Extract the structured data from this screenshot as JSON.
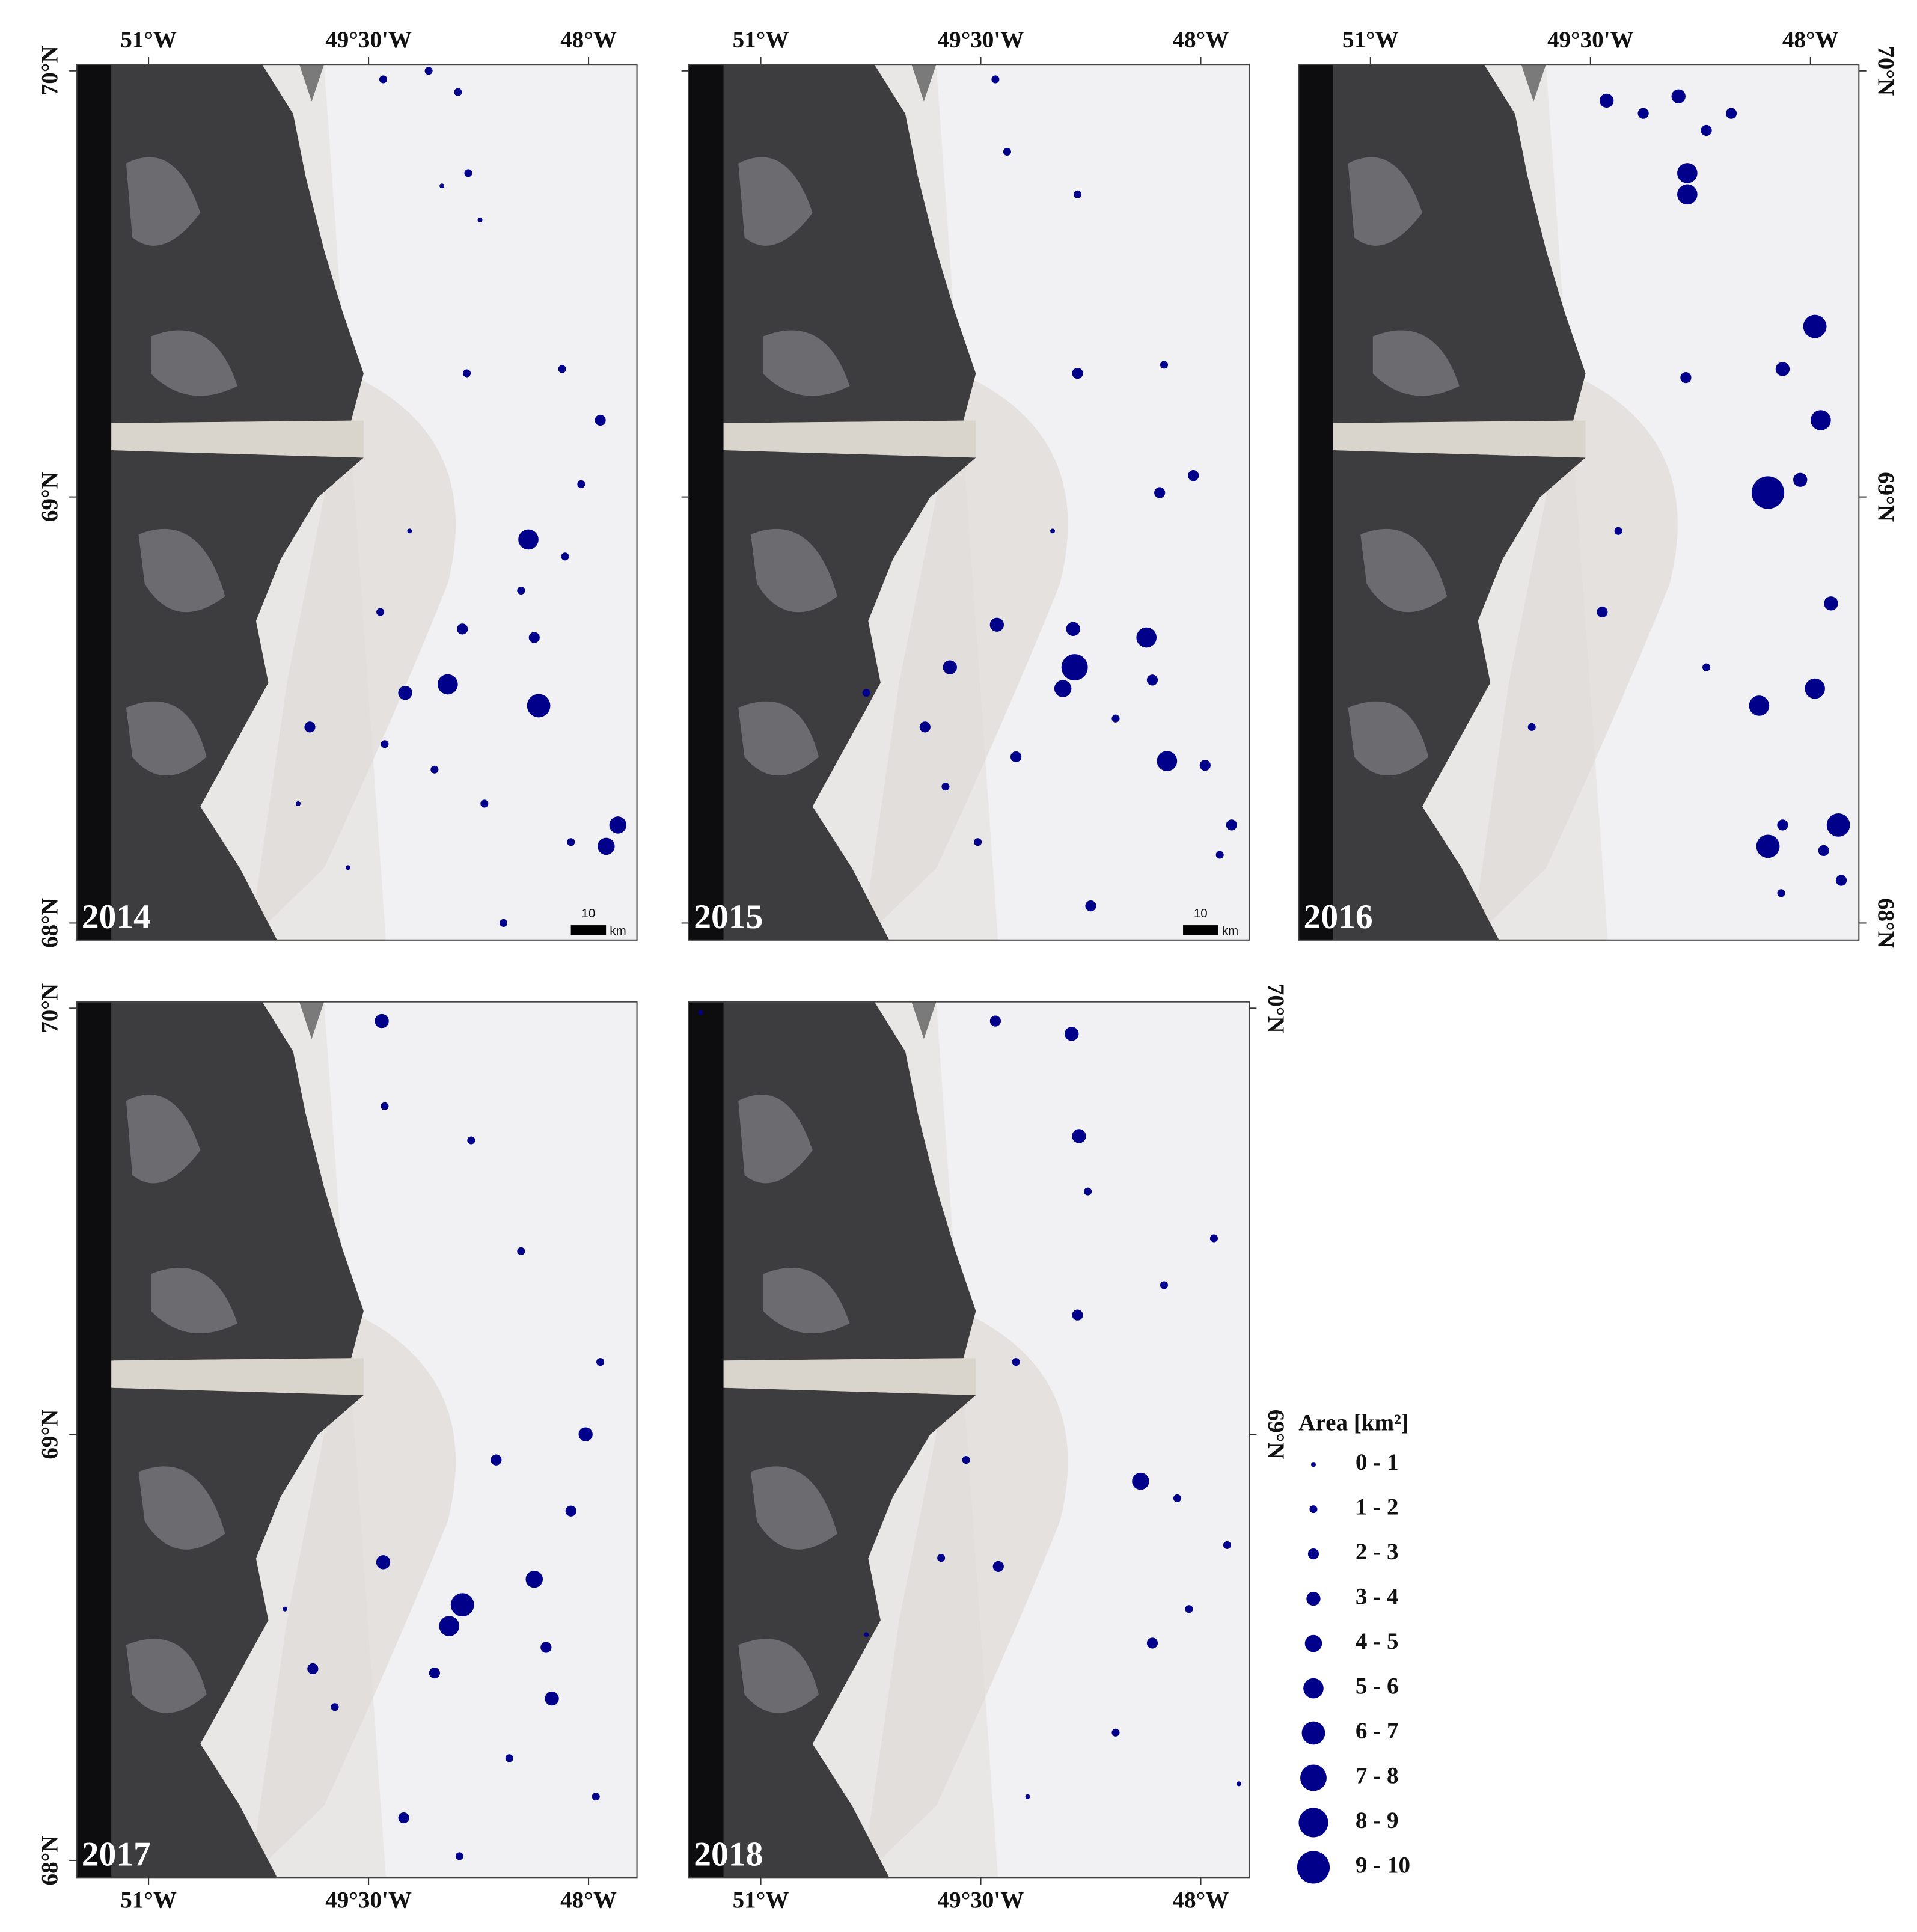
{
  "chart_data": [
    {
      "type": "scatter",
      "title": "2014",
      "color": "#00008b",
      "x": [
        -49.4,
        -49.09,
        -48.89,
        -48.82,
        -49.0,
        -48.74,
        -48.18,
        -48.83,
        -47.92,
        -48.05,
        -48.41,
        -48.16,
        -49.42,
        -48.86,
        -48.37,
        -48.96,
        -49.25,
        -48.34,
        -49.9,
        -49.39,
        -49.05,
        -48.71,
        -47.8,
        -47.88,
        -49.64,
        -48.58,
        -48.46,
        -49.98,
        -48.12,
        -49.22
      ],
      "y": [
        69.98,
        70.0,
        69.95,
        69.76,
        69.73,
        69.65,
        69.3,
        69.29,
        69.18,
        69.03,
        68.9,
        68.86,
        68.73,
        68.69,
        68.67,
        68.56,
        68.54,
        68.51,
        68.46,
        68.42,
        68.36,
        68.28,
        68.23,
        68.18,
        68.13,
        68.0,
        68.78,
        68.28,
        68.19,
        68.92
      ],
      "area": [
        1.5,
        1.5,
        1.5,
        1.5,
        0.5,
        0.5,
        1.5,
        1.5,
        2.5,
        1.5,
        5.5,
        1.5,
        1.5,
        2.5,
        2.5,
        5.5,
        3.5,
        6.5,
        2.5,
        1.5,
        1.5,
        1.5,
        4.5,
        4.5,
        0.5,
        1.5,
        1.5,
        0.5,
        1.5,
        0.5
      ],
      "xlim": [
        -51.49,
        -47.67
      ],
      "ylim": [
        67.96,
        70.015
      ],
      "xticks": [
        {
          "value": -51,
          "label": "51°W"
        },
        {
          "value": -49.5,
          "label": "49°30'W"
        },
        {
          "value": -48,
          "label": "48°W"
        }
      ],
      "x_labels": "top",
      "yticks": [
        {
          "value": 68,
          "label": "68°N"
        },
        {
          "value": 69,
          "label": "69°N"
        },
        {
          "value": 70,
          "label": "70°N"
        }
      ],
      "y_labels": "left",
      "scalebar": {
        "value": 10,
        "unit": "km"
      }
    },
    {
      "type": "scatter",
      "title": "2015",
      "color": "#00008b",
      "x": [
        -48.86,
        -48.37,
        -48.94,
        -48.23,
        -49.39,
        -49.71,
        -49.88,
        -48.87,
        -48.84,
        -48.28,
        -48.05,
        -47.79,
        -47.87,
        -48.75,
        -49.4,
        -49.32,
        -48.84,
        -47.97,
        -49.26,
        -49.74,
        -48.58,
        -48.33,
        -49.52,
        -48.25,
        -50.28,
        -49.01
      ],
      "y": [
        68.6,
        68.67,
        68.55,
        68.38,
        68.7,
        68.6,
        68.46,
        68.69,
        69.29,
        69.01,
        69.05,
        68.23,
        68.16,
        68.04,
        69.98,
        69.81,
        69.71,
        68.37,
        68.39,
        68.32,
        68.48,
        68.57,
        68.19,
        69.31,
        68.54,
        68.92
      ],
      "area": [
        7.5,
        5.5,
        4.5,
        5.5,
        3.5,
        3.5,
        2.5,
        3.5,
        2.5,
        2.5,
        2.5,
        2.5,
        1.5,
        2.5,
        1.5,
        1.5,
        1.5,
        2.5,
        2.5,
        1.5,
        1.5,
        2.5,
        1.5,
        1.5,
        1.5,
        0.5
      ],
      "xlim": [
        -51.49,
        -47.67
      ],
      "ylim": [
        67.96,
        70.015
      ],
      "xticks": [
        {
          "value": -51,
          "label": "51°W"
        },
        {
          "value": -49.5,
          "label": "49°30'W"
        },
        {
          "value": -48,
          "label": "48°W"
        }
      ],
      "x_labels": "top",
      "yticks": [
        68,
        69,
        70
      ],
      "y_labels": "none",
      "scalebar": {
        "value": 10,
        "unit": "km"
      }
    },
    {
      "type": "scatter",
      "title": "2016",
      "color": "#00008b",
      "x": [
        -48.29,
        -47.97,
        -47.93,
        -47.81,
        -48.29,
        -47.97,
        -48.35,
        -47.86,
        -48.07,
        -48.84,
        -48.84,
        -48.9,
        -48.54,
        -48.71,
        -48.19,
        -48.85,
        -49.42,
        -48.19,
        -47.91,
        -47.79,
        -49.9,
        -49.39,
        -49.14,
        -49.31,
        -48.71,
        -48.2
      ],
      "y": [
        69.01,
        69.4,
        69.18,
        68.23,
        68.18,
        68.55,
        68.51,
        68.75,
        69.04,
        69.76,
        69.71,
        69.94,
        69.9,
        69.86,
        69.3,
        69.28,
        68.73,
        68.23,
        68.17,
        68.1,
        68.46,
        69.93,
        69.9,
        68.92,
        68.6,
        68.07
      ],
      "area": [
        9.5,
        6.5,
        5.5,
        6.5,
        6.5,
        5.5,
        5.5,
        3.5,
        3.5,
        5.5,
        5.5,
        3.5,
        2.5,
        2.5,
        3.5,
        2.5,
        2.5,
        2.5,
        2.5,
        2.5,
        1.5,
        3.5,
        2.5,
        1.5,
        1.5,
        1.5
      ],
      "xlim": [
        -51.49,
        -47.67
      ],
      "ylim": [
        67.96,
        70.015
      ],
      "xticks": [
        {
          "value": -51,
          "label": "51°W"
        },
        {
          "value": -49.5,
          "label": "49°30'W"
        },
        {
          "value": -48,
          "label": "48°W"
        }
      ],
      "x_labels": "top",
      "yticks": [
        {
          "value": 68,
          "label": "68°N"
        },
        {
          "value": 69,
          "label": "69°N"
        },
        {
          "value": 70,
          "label": "70°N"
        }
      ],
      "y_labels": "right"
    },
    {
      "type": "scatter",
      "title": "2017",
      "color": "#00008b",
      "x": [
        -48.86,
        -48.95,
        -48.37,
        -49.4,
        -49.88,
        -48.25,
        -48.02,
        -49.26,
        -49.41,
        -49.39,
        -48.8,
        -48.46,
        -47.92,
        -48.63,
        -48.12,
        -49.05,
        -48.54,
        -47.95,
        -49.73,
        -50.07,
        -48.88,
        -48.29
      ],
      "y": [
        68.6,
        68.55,
        68.66,
        68.7,
        68.45,
        68.38,
        69.0,
        68.1,
        69.97,
        69.77,
        69.69,
        69.43,
        69.17,
        68.94,
        68.82,
        68.44,
        68.24,
        68.15,
        68.36,
        68.59,
        68.01,
        68.5
      ],
      "area": [
        6.5,
        5.5,
        4.5,
        3.5,
        2.5,
        3.5,
        3.5,
        2.5,
        3.5,
        1.5,
        1.5,
        1.5,
        1.5,
        2.5,
        2.5,
        2.5,
        1.5,
        1.5,
        1.5,
        0.5,
        1.5,
        2.5
      ],
      "xlim": [
        -51.49,
        -47.67
      ],
      "ylim": [
        67.96,
        70.015
      ],
      "xticks": [
        {
          "value": -51,
          "label": "51°W"
        },
        {
          "value": -49.5,
          "label": "49°30'W"
        },
        {
          "value": -48,
          "label": "48°W"
        }
      ],
      "x_labels": "bottom",
      "yticks": [
        {
          "value": 68,
          "label": "68°N"
        },
        {
          "value": 69,
          "label": "69°N"
        },
        {
          "value": 70,
          "label": "70°N"
        }
      ],
      "y_labels": "left"
    },
    {
      "type": "scatter",
      "title": "2018",
      "color": "#00008b",
      "x": [
        -48.41,
        -48.88,
        -48.83,
        -49.38,
        -48.33,
        -48.84,
        -48.77,
        -49.4,
        -47.82,
        -48.16,
        -48.08,
        -49.6,
        -48.58,
        -47.91,
        -49.26,
        -49.77,
        -49.18,
        -48.25,
        -47.74,
        -50.28,
        -51.41
      ],
      "y": [
        68.89,
        69.94,
        69.7,
        68.69,
        68.51,
        69.28,
        69.57,
        69.97,
        68.74,
        68.85,
        68.59,
        68.94,
        68.3,
        69.46,
        69.17,
        68.71,
        68.15,
        69.35,
        68.18,
        68.53,
        69.99
      ],
      "area": [
        4.5,
        3.5,
        3.5,
        2.5,
        2.5,
        2.5,
        1.5,
        2.5,
        1.5,
        1.5,
        1.5,
        1.5,
        1.5,
        1.5,
        1.5,
        1.5,
        0.5,
        1.5,
        0.5,
        0.5,
        0.5
      ],
      "xlim": [
        -51.49,
        -47.67
      ],
      "ylim": [
        67.96,
        70.015
      ],
      "xticks": [
        {
          "value": -51,
          "label": "51°W"
        },
        {
          "value": -49.5,
          "label": "49°30'W"
        },
        {
          "value": -48,
          "label": "48°W"
        }
      ],
      "x_labels": "bottom",
      "yticks": [
        {
          "value": 69,
          "label": "69°N"
        },
        {
          "value": 70,
          "label": "70°N"
        }
      ],
      "y_labels": "right"
    }
  ],
  "legend": {
    "title": "Area [km²]",
    "items": [
      "0 - 1",
      "1 - 2",
      "2 - 3",
      "3 - 4",
      "4 - 5",
      "5 - 6",
      "6 - 7",
      "7 - 8",
      "8 - 9",
      "9 - 10"
    ]
  }
}
